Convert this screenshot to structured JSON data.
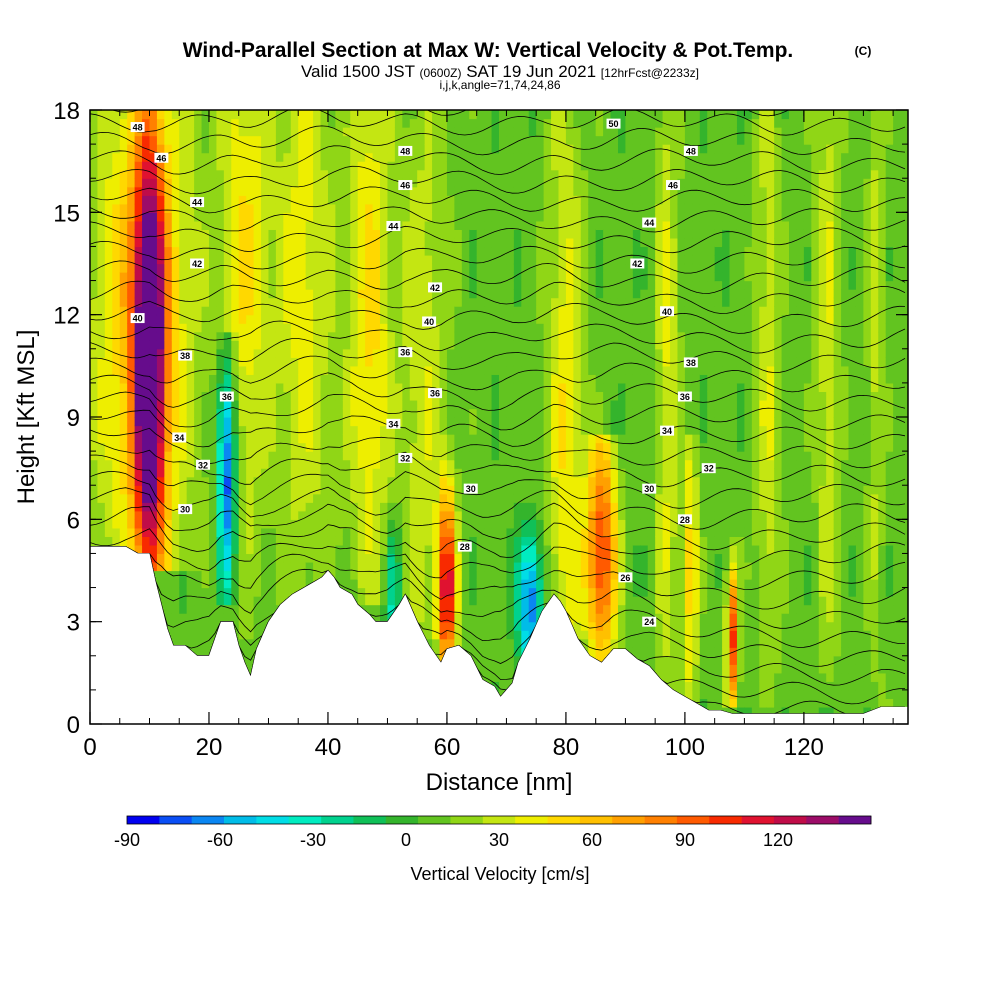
{
  "title": {
    "main": "Wind-Parallel Section at Max W: Vertical Velocity & Pot.Temp.",
    "copyright": "(C)",
    "valid_prefix": "Valid 1500 JST",
    "valid_zulu": "(0600Z)",
    "valid_date": "SAT 19 Jun 2021",
    "forecast": "[12hrFcst@2233z]",
    "indices": "i,j,k,angle=71,74,24,86"
  },
  "chart_data": {
    "type": "heatmap",
    "xlabel": "Distance [nm]",
    "ylabel": "Height [Kft MSL]",
    "xlim": [
      0,
      137.5
    ],
    "ylim": [
      0,
      18
    ],
    "x_ticks": [
      0,
      20,
      40,
      60,
      80,
      100,
      120
    ],
    "y_ticks": [
      0,
      3,
      6,
      9,
      12,
      15,
      18
    ],
    "x_tick_labels": [
      "0",
      "20",
      "40",
      "60",
      "80",
      "100",
      "120"
    ],
    "y_tick_labels": [
      "0",
      "3",
      "6",
      "9",
      "12",
      "15",
      "18"
    ],
    "colorbar": {
      "label": "Vertical Velocity [cm/s]",
      "min": -90,
      "max": 140,
      "step": 10,
      "ticks": [
        -90,
        -60,
        -30,
        0,
        30,
        60,
        90,
        120
      ],
      "tick_labels": [
        "-90",
        "-60",
        "-30",
        "0",
        "30",
        "60",
        "90",
        "120"
      ],
      "colors": [
        "#0000f0",
        "#0a4ef5",
        "#0a86f2",
        "#00bce8",
        "#00dde6",
        "#00ecc0",
        "#00d28e",
        "#10c058",
        "#34b42c",
        "#62c420",
        "#90d616",
        "#c4e612",
        "#eeee00",
        "#ffd800",
        "#ffc000",
        "#ffa000",
        "#ff8000",
        "#ff5a00",
        "#f82a00",
        "#e01230",
        "#c00c48",
        "#9c0c68",
        "#660c8c"
      ]
    },
    "terrain_kft": [
      [
        0,
        5.2
      ],
      [
        3,
        5.2
      ],
      [
        6,
        5.2
      ],
      [
        8,
        5.0
      ],
      [
        10,
        5.0
      ],
      [
        11,
        4.2
      ],
      [
        12,
        3.5
      ],
      [
        13,
        2.8
      ],
      [
        14,
        2.3
      ],
      [
        16,
        2.3
      ],
      [
        18,
        2.0
      ],
      [
        20,
        2.0
      ],
      [
        22,
        3.0
      ],
      [
        24,
        3.0
      ],
      [
        25,
        2.3
      ],
      [
        26,
        1.8
      ],
      [
        27,
        1.4
      ],
      [
        28,
        2.2
      ],
      [
        30,
        3.0
      ],
      [
        32,
        3.5
      ],
      [
        34,
        3.8
      ],
      [
        36,
        4.0
      ],
      [
        38,
        4.2
      ],
      [
        39,
        4.3
      ],
      [
        40,
        4.5
      ],
      [
        41,
        4.3
      ],
      [
        42,
        4.0
      ],
      [
        44,
        3.8
      ],
      [
        45,
        3.5
      ],
      [
        47,
        3.2
      ],
      [
        48,
        3.0
      ],
      [
        50,
        3.0
      ],
      [
        52,
        3.5
      ],
      [
        53,
        3.8
      ],
      [
        55,
        3.0
      ],
      [
        57,
        2.3
      ],
      [
        59,
        1.8
      ],
      [
        60,
        2.2
      ],
      [
        62,
        2.3
      ],
      [
        64,
        2.0
      ],
      [
        66,
        1.3
      ],
      [
        68,
        1.1
      ],
      [
        69,
        0.8
      ],
      [
        71,
        1.2
      ],
      [
        72,
        1.8
      ],
      [
        74,
        2.5
      ],
      [
        76,
        3.3
      ],
      [
        78,
        3.8
      ],
      [
        79,
        3.6
      ],
      [
        80,
        3.3
      ],
      [
        81,
        2.9
      ],
      [
        82,
        2.5
      ],
      [
        84,
        2.0
      ],
      [
        86,
        1.8
      ],
      [
        88,
        2.2
      ],
      [
        90,
        2.2
      ],
      [
        92,
        1.9
      ],
      [
        94,
        1.7
      ],
      [
        96,
        1.3
      ],
      [
        98,
        1.0
      ],
      [
        100,
        0.8
      ],
      [
        102,
        0.6
      ],
      [
        104,
        0.4
      ],
      [
        106,
        0.4
      ],
      [
        108,
        0.3
      ],
      [
        110,
        0.3
      ],
      [
        112,
        0.3
      ],
      [
        115,
        0.3
      ],
      [
        120,
        0.3
      ],
      [
        125,
        0.3
      ],
      [
        130,
        0.3
      ],
      [
        133,
        0.5
      ],
      [
        137.5,
        0.5
      ]
    ],
    "updrafts": [
      {
        "x": 10,
        "width": 2.5,
        "base": 5,
        "top": 18,
        "peak": 140,
        "peak_height": 10.5,
        "spread": 4.5
      },
      {
        "x": 9,
        "width": 8,
        "base": 5,
        "top": 18,
        "peak": 55,
        "peak_height": 12,
        "spread": 6
      },
      {
        "x": 23,
        "width": 1.5,
        "base": 4,
        "top": 11,
        "peak": -90,
        "peak_height": 7.5,
        "spread": 2.5
      },
      {
        "x": 26,
        "width": 4,
        "base": 2,
        "top": 18,
        "peak": 35,
        "peak_height": 14,
        "spread": 6
      },
      {
        "x": 36,
        "width": 5,
        "base": 4,
        "top": 18,
        "peak": 32,
        "peak_height": 13,
        "spread": 6
      },
      {
        "x": 47,
        "width": 3.5,
        "base": 4,
        "top": 18,
        "peak": 40,
        "peak_height": 12,
        "spread": 6
      },
      {
        "x": 51,
        "width": 1.2,
        "base": 3,
        "top": 6,
        "peak": -40,
        "peak_height": 4,
        "spread": 1.5
      },
      {
        "x": 60,
        "width": 1.5,
        "base": 1.8,
        "top": 8,
        "peak": 105,
        "peak_height": 4,
        "spread": 2
      },
      {
        "x": 56,
        "width": 4,
        "base": 3,
        "top": 18,
        "peak": 25,
        "peak_height": 10,
        "spread": 7
      },
      {
        "x": 74,
        "width": 2,
        "base": 1.5,
        "top": 6,
        "peak": -75,
        "peak_height": 3.5,
        "spread": 1.5
      },
      {
        "x": 80,
        "width": 3,
        "base": 3,
        "top": 18,
        "peak": 35,
        "peak_height": 8,
        "spread": 8
      },
      {
        "x": 86,
        "width": 2.5,
        "base": 2,
        "top": 8,
        "peak": 90,
        "peak_height": 5,
        "spread": 2.5
      },
      {
        "x": 97,
        "width": 2,
        "base": 1,
        "top": 18,
        "peak": 28,
        "peak_height": 10,
        "spread": 8
      },
      {
        "x": 101,
        "width": 1.2,
        "base": 1,
        "top": 8,
        "peak": 45,
        "peak_height": 4.5,
        "spread": 3
      },
      {
        "x": 108,
        "width": 1,
        "base": 1,
        "top": 5,
        "peak": 90,
        "peak_height": 2.5,
        "spread": 1.5
      },
      {
        "x": 114,
        "width": 2,
        "base": 1,
        "top": 18,
        "peak": 25,
        "peak_height": 10,
        "spread": 8
      },
      {
        "x": 124,
        "width": 2,
        "base": 1,
        "top": 18,
        "peak": 25,
        "peak_height": 12,
        "spread": 8
      },
      {
        "x": 132,
        "width": 1.5,
        "base": 1,
        "top": 18,
        "peak": 20,
        "peak_height": 12,
        "spread": 8
      }
    ],
    "theta_contours": {
      "base_value": 19,
      "spacing_kft": 0.58,
      "count": 55,
      "labels": [
        {
          "x": 8,
          "y": 17.5,
          "text": "48"
        },
        {
          "x": 12,
          "y": 16.6,
          "text": "46"
        },
        {
          "x": 18,
          "y": 15.3,
          "text": "44"
        },
        {
          "x": 18,
          "y": 13.5,
          "text": "42"
        },
        {
          "x": 8,
          "y": 11.9,
          "text": "40"
        },
        {
          "x": 16,
          "y": 10.8,
          "text": "38"
        },
        {
          "x": 23,
          "y": 9.6,
          "text": "36"
        },
        {
          "x": 15,
          "y": 8.4,
          "text": "34"
        },
        {
          "x": 19,
          "y": 7.6,
          "text": "32"
        },
        {
          "x": 16,
          "y": 6.3,
          "text": "30"
        },
        {
          "x": 53,
          "y": 16.8,
          "text": "48"
        },
        {
          "x": 53,
          "y": 15.8,
          "text": "46"
        },
        {
          "x": 51,
          "y": 14.6,
          "text": "44"
        },
        {
          "x": 58,
          "y": 12.8,
          "text": "42"
        },
        {
          "x": 57,
          "y": 11.8,
          "text": "40"
        },
        {
          "x": 53,
          "y": 10.9,
          "text": "36"
        },
        {
          "x": 58,
          "y": 9.7,
          "text": "36"
        },
        {
          "x": 51,
          "y": 8.8,
          "text": "34"
        },
        {
          "x": 53,
          "y": 7.8,
          "text": "32"
        },
        {
          "x": 64,
          "y": 6.9,
          "text": "30"
        },
        {
          "x": 63,
          "y": 5.2,
          "text": "28"
        },
        {
          "x": 88,
          "y": 17.6,
          "text": "50"
        },
        {
          "x": 101,
          "y": 16.8,
          "text": "48"
        },
        {
          "x": 98,
          "y": 15.8,
          "text": "46"
        },
        {
          "x": 94,
          "y": 14.7,
          "text": "44"
        },
        {
          "x": 92,
          "y": 13.5,
          "text": "42"
        },
        {
          "x": 97,
          "y": 12.1,
          "text": "40"
        },
        {
          "x": 101,
          "y": 10.6,
          "text": "38"
        },
        {
          "x": 100,
          "y": 9.6,
          "text": "36"
        },
        {
          "x": 97,
          "y": 8.6,
          "text": "34"
        },
        {
          "x": 104,
          "y": 7.5,
          "text": "32"
        },
        {
          "x": 94,
          "y": 6.9,
          "text": "30"
        },
        {
          "x": 100,
          "y": 6.0,
          "text": "28"
        },
        {
          "x": 90,
          "y": 4.3,
          "text": "26"
        },
        {
          "x": 94,
          "y": 3.0,
          "text": "24"
        }
      ]
    }
  }
}
